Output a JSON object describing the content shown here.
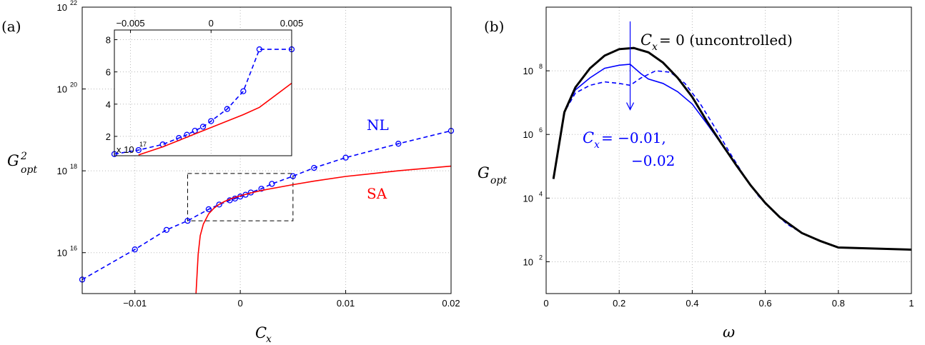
{
  "chart_data": [
    {
      "type": "line",
      "panel_label": "(a)",
      "xlabel": "C_x",
      "ylabel": "G_opt^2",
      "log_y": true,
      "xlim": [
        -0.015,
        0.02
      ],
      "ylim": [
        1000000000000000.0,
        1e+22
      ],
      "xticks": [
        -0.01,
        0,
        0.01,
        0.02
      ],
      "xtick_labels": [
        "−0.01",
        "0",
        "0.01",
        "0.02"
      ],
      "yticks": [
        16,
        18,
        20,
        22
      ],
      "ytick_labels": [
        "10",
        "10",
        "10",
        "10"
      ],
      "ytick_exponents": [
        "16",
        "18",
        "20",
        "22"
      ],
      "grid": true,
      "series": [
        {
          "name": "NL",
          "color": "#0000ff",
          "style": "dashed-circles",
          "x": [
            -0.015,
            -0.01,
            -0.007,
            -0.005,
            -0.003,
            -0.002,
            -0.001,
            -0.0005,
            0,
            0.0005,
            0.001,
            0.002,
            0.003,
            0.005,
            0.007,
            0.01,
            0.015,
            0.02
          ],
          "y": [
            2200000000000000.0,
            1.2e+16,
            3.6e+16,
            6e+16,
            1.15e+17,
            1.5e+17,
            1.9e+17,
            2.1e+17,
            2.35e+17,
            2.6e+17,
            2.95e+17,
            3.65e+17,
            4.8e+17,
            7.4e+17,
            1.18e+18,
            2.1e+18,
            4.6e+18,
            9.5e+18
          ]
        },
        {
          "name": "SA",
          "color": "#ff0000",
          "style": "solid",
          "x": [
            -0.0042,
            -0.0041,
            -0.004,
            -0.0038,
            -0.0035,
            -0.003,
            -0.0025,
            -0.002,
            -0.0015,
            -0.001,
            -0.0005,
            0,
            0.0005,
            0.001,
            0.002,
            0.003,
            0.005,
            0.007,
            0.01,
            0.015,
            0.02
          ],
          "y": [
            1000000000000000.0,
            3000000000000000.0,
            9000000000000000.0,
            2.6e+16,
            5e+16,
            8.9e+16,
            1.22e+17,
            1.52e+17,
            1.78e+17,
            2.02e+17,
            2.24e+17,
            2.45e+17,
            2.66e+17,
            2.88e+17,
            3.3e+17,
            3.7e+17,
            4.6e+17,
            5.6e+17,
            7.3e+17,
            1e+18,
            1.3e+18
          ]
        }
      ],
      "annotations": [
        {
          "text": "NL",
          "color": "#0000ff"
        },
        {
          "text": "SA",
          "color": "#ff0000"
        }
      ],
      "zoom_box": {
        "xlim": [
          -0.005,
          0.005
        ],
        "ylim": [
          6e+16,
          8.6e+17
        ],
        "style": "dashed"
      },
      "inset": {
        "type": "line",
        "xlim": [
          -0.006,
          0.005
        ],
        "ylim": [
          0.8,
          8.6
        ],
        "xticks": [
          -0.005,
          0,
          0.005
        ],
        "xtick_labels": [
          "−0.005",
          "0",
          "0.005"
        ],
        "yticks": [
          2,
          4,
          6,
          8
        ],
        "ytick_labels": [
          "2",
          "4",
          "6",
          "8"
        ],
        "multiplier": "x 10",
        "multiplier_exp": "17",
        "series": [
          {
            "name": "NL",
            "color": "#0000ff",
            "style": "dashed-circles",
            "x": [
              -0.006,
              -0.0045,
              -0.003,
              -0.002,
              -0.0015,
              -0.001,
              -0.0005,
              0,
              0.001,
              0.002,
              0.003,
              0.005
            ],
            "y": [
              0.9,
              1.15,
              1.5,
              1.9,
              2.1,
              2.35,
              2.6,
              2.95,
              3.7,
              4.8,
              7.4,
              7.4
            ]
          },
          {
            "name": "SA",
            "color": "#ff0000",
            "style": "solid",
            "x": [
              -0.0045,
              -0.003,
              -0.002,
              -0.001,
              0,
              0.001,
              0.002,
              0.003,
              0.005
            ],
            "y": [
              0.85,
              1.35,
              1.75,
              2.15,
              2.55,
              2.95,
              3.35,
              3.8,
              5.3
            ]
          }
        ]
      }
    },
    {
      "type": "line",
      "panel_label": "(b)",
      "xlabel": "ω",
      "ylabel": "G_opt",
      "log_y": true,
      "xlim": [
        0,
        1
      ],
      "ylim": [
        10,
        10000000000.0
      ],
      "xticks": [
        0,
        0.2,
        0.4,
        0.6,
        0.8,
        1
      ],
      "xtick_labels": [
        "0",
        "0.2",
        "0.4",
        "0.6",
        "0.8",
        "1"
      ],
      "yticks": [
        2,
        4,
        6,
        8
      ],
      "ytick_labels": [
        "10",
        "10",
        "10",
        "10"
      ],
      "ytick_exponents": [
        "2",
        "4",
        "6",
        "8"
      ],
      "grid": true,
      "series": [
        {
          "name": "C_x = 0 (uncontrolled)",
          "color": "#000000",
          "style": "solid-thick",
          "x": [
            0.02,
            0.05,
            0.08,
            0.12,
            0.16,
            0.2,
            0.24,
            0.28,
            0.32,
            0.36,
            0.4,
            0.44,
            0.48,
            0.52,
            0.56,
            0.6,
            0.64,
            0.7,
            0.75,
            0.8,
            0.9,
            1.0
          ],
          "y": [
            40000,
            5000000,
            30000000,
            120000000,
            300000000,
            480000000,
            520000000,
            380000000,
            180000000,
            60000000,
            15000000,
            2600000,
            520000,
            110000,
            25000,
            7000,
            2500,
            800,
            450,
            280,
            260,
            240
          ]
        },
        {
          "name": "C_x = -0.01",
          "color": "#0000ff",
          "style": "solid",
          "x": [
            0.02,
            0.05,
            0.08,
            0.12,
            0.16,
            0.2,
            0.23,
            0.26,
            0.28,
            0.32,
            0.36,
            0.4,
            0.44,
            0.48,
            0.52,
            0.56,
            0.6,
            0.64,
            0.7,
            0.75,
            0.8,
            0.9,
            1.0
          ],
          "y": [
            40000,
            5000000,
            25000000,
            60000000,
            120000000,
            150000000,
            160000000,
            80000000,
            55000000,
            40000000,
            22000000,
            9000000,
            2200000,
            500000,
            110000,
            25000,
            7000,
            2500,
            800,
            450,
            280,
            260,
            240
          ]
        },
        {
          "name": "C_x = -0.02",
          "color": "#0000ff",
          "style": "dashed",
          "x": [
            0.02,
            0.05,
            0.08,
            0.12,
            0.16,
            0.2,
            0.23,
            0.26,
            0.3,
            0.34,
            0.38,
            0.42,
            0.46,
            0.5,
            0.54,
            0.58,
            0.62,
            0.66,
            0.7,
            0.75,
            0.8,
            0.9,
            1.0
          ],
          "y": [
            40000,
            5000000,
            20000000,
            35000000,
            45000000,
            40000000,
            35000000,
            60000000,
            100000000,
            90000000,
            40000000,
            10000000,
            1800000,
            300000,
            55000,
            12000,
            4000,
            1500,
            800,
            450,
            280,
            260,
            240
          ]
        }
      ],
      "annotations": [
        {
          "text_main": "C",
          "text_sub": "x",
          "text_tail": " = 0 (uncontrolled)",
          "color": "#000000"
        },
        {
          "text_main": "C",
          "text_sub": "x",
          "text_tail": " = −0.01,",
          "line2": "−0.02",
          "color": "#0000ff"
        }
      ],
      "arrow": {
        "x": 0.23,
        "from_y": 10000000000.0,
        "to_y": 6000000,
        "color": "#0000ff"
      }
    }
  ]
}
